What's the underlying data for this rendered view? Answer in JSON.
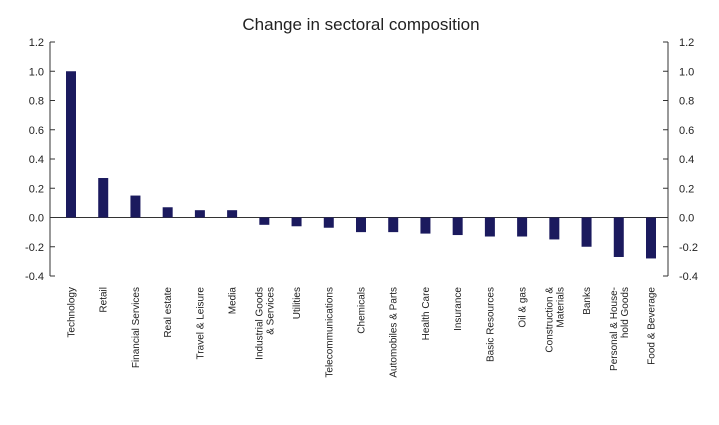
{
  "chart_data": {
    "type": "bar",
    "title": "Change in sectoral composition",
    "xlabel": "",
    "ylabel": "",
    "ylim": [
      -0.4,
      1.2
    ],
    "yticks": [
      -0.4,
      -0.2,
      0.0,
      0.2,
      0.4,
      0.6,
      0.8,
      1.0,
      1.2
    ],
    "ytick_labels": [
      "-0.4",
      "-0.2",
      "0.0",
      "0.2",
      "0.4",
      "0.6",
      "0.8",
      "1.0",
      "1.2"
    ],
    "grid": false,
    "legend": "none",
    "bar_color": "#1b1a5e",
    "categories": [
      [
        "Technology"
      ],
      [
        "Retail"
      ],
      [
        "Financial Services"
      ],
      [
        "Real estate"
      ],
      [
        "Travel & Leisure"
      ],
      [
        "Media"
      ],
      [
        "Industrial Goods",
        "& Services"
      ],
      [
        "Utilities"
      ],
      [
        "Telecommunications"
      ],
      [
        "Chemicals"
      ],
      [
        "Automobiles & Parts"
      ],
      [
        "Health Care"
      ],
      [
        "Insurance"
      ],
      [
        "Basic Resources"
      ],
      [
        "Oil & gas"
      ],
      [
        "Construction &",
        "Materials"
      ],
      [
        "Banks"
      ],
      [
        "Personal & House-",
        "hold Goods"
      ],
      [
        "Food & Beverage"
      ]
    ],
    "values": [
      1.0,
      0.27,
      0.15,
      0.07,
      0.05,
      0.05,
      -0.05,
      -0.06,
      -0.07,
      -0.1,
      -0.1,
      -0.11,
      -0.12,
      -0.13,
      -0.13,
      -0.15,
      -0.2,
      -0.27,
      -0.28
    ]
  }
}
